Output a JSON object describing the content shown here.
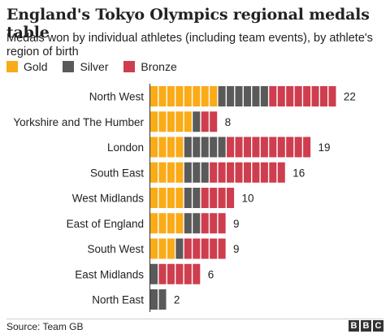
{
  "title": "England's Tokyo Olympics regional medals table",
  "subtitle": "Medals won by individual athletes (including team events), by athlete's region of birth",
  "source": "Source: Team GB",
  "logo_letters": [
    "B",
    "B",
    "C"
  ],
  "colors": {
    "gold": "#FAAB18",
    "silver": "#5A5A5A",
    "bronze": "#CE3E4F"
  },
  "chart_data": {
    "type": "bar",
    "orientation": "horizontal",
    "stacked": true,
    "legend_position": "top-left",
    "grid": false,
    "categories": [
      "North West",
      "Yorkshire and The Humber",
      "London",
      "South East",
      "West Midlands",
      "East of England",
      "South West",
      "East Midlands",
      "North East"
    ],
    "series": [
      {
        "name": "Gold",
        "values": [
          8,
          5,
          4,
          4,
          4,
          4,
          3,
          0,
          0
        ]
      },
      {
        "name": "Silver",
        "values": [
          6,
          1,
          5,
          3,
          2,
          2,
          1,
          1,
          2
        ]
      },
      {
        "name": "Bronze",
        "values": [
          8,
          2,
          10,
          9,
          4,
          3,
          5,
          5,
          0
        ]
      }
    ],
    "totals": [
      22,
      8,
      19,
      16,
      10,
      9,
      9,
      6,
      2
    ]
  }
}
